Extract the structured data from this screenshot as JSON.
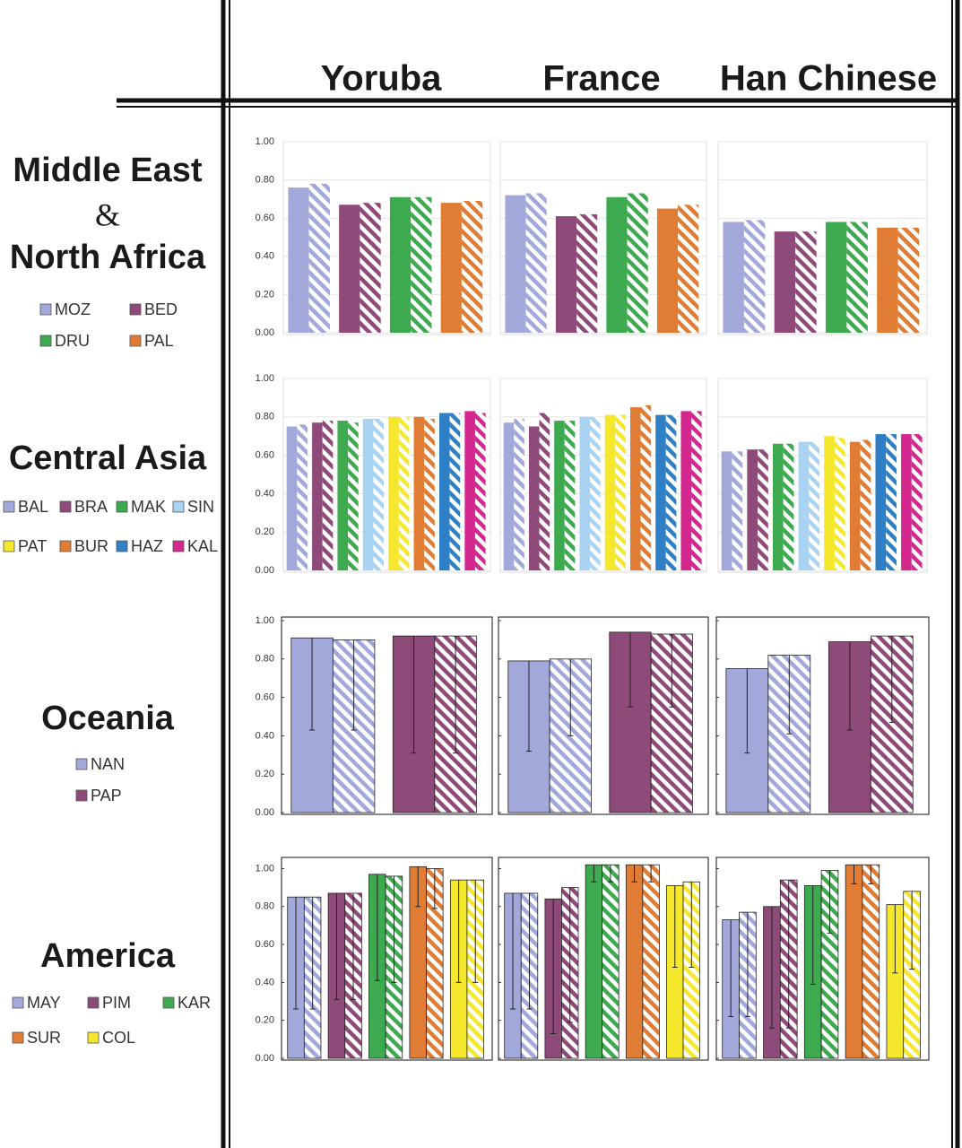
{
  "columns": [
    "Yoruba",
    "France",
    "Han Chinese"
  ],
  "chart_data": [
    {
      "type": "bar",
      "title": [
        "Middle East",
        "&",
        "North Africa"
      ],
      "ylim": [
        0,
        1
      ],
      "yticks": [
        {
          "value": 0,
          "label": "0.00"
        },
        {
          "value": 0.2,
          "label": "0.20"
        },
        {
          "value": 0.4,
          "label": "0.40"
        },
        {
          "value": 0.6,
          "label": "0.60"
        },
        {
          "value": 0.8,
          "label": "0.80"
        },
        {
          "value": 1,
          "label": "1.00"
        }
      ],
      "grid": true,
      "frame": "light",
      "bar_outline": false,
      "legend_columns": 2,
      "series": [
        {
          "name": "MOZ",
          "color": "#a3a8da",
          "values": [
            [
              0.76,
              0.78
            ],
            [
              0.72,
              0.73
            ],
            [
              0.58,
              0.59
            ]
          ]
        },
        {
          "name": "BED",
          "color": "#8e4a78",
          "values": [
            [
              0.67,
              0.68
            ],
            [
              0.61,
              0.62
            ],
            [
              0.53,
              0.53
            ]
          ]
        },
        {
          "name": "DRU",
          "color": "#3daa4f",
          "values": [
            [
              0.71,
              0.71
            ],
            [
              0.71,
              0.73
            ],
            [
              0.58,
              0.58
            ]
          ]
        },
        {
          "name": "PAL",
          "color": "#e07c33",
          "values": [
            [
              0.68,
              0.69
            ],
            [
              0.65,
              0.67
            ],
            [
              0.55,
              0.55
            ]
          ]
        }
      ]
    },
    {
      "type": "bar",
      "title": [
        "Central Asia"
      ],
      "ylim": [
        0,
        1
      ],
      "yticks": [
        {
          "value": 0,
          "label": "0.00"
        },
        {
          "value": 0.2,
          "label": "0.20"
        },
        {
          "value": 0.4,
          "label": "0.40"
        },
        {
          "value": 0.6,
          "label": "0.60"
        },
        {
          "value": 0.8,
          "label": "0.80"
        },
        {
          "value": 1,
          "label": "1.00"
        }
      ],
      "grid": true,
      "frame": "light",
      "bar_outline": false,
      "legend_columns": 4,
      "series": [
        {
          "name": "BAL",
          "color": "#a3a8da",
          "values": [
            [
              0.75,
              0.76
            ],
            [
              0.77,
              0.79
            ],
            [
              0.62,
              0.62
            ]
          ]
        },
        {
          "name": "BRA",
          "color": "#8e4a78",
          "values": [
            [
              0.77,
              0.78
            ],
            [
              0.75,
              0.82
            ],
            [
              0.63,
              0.63
            ]
          ]
        },
        {
          "name": "MAK",
          "color": "#3daa4f",
          "values": [
            [
              0.78,
              0.77
            ],
            [
              0.78,
              0.78
            ],
            [
              0.66,
              0.66
            ]
          ]
        },
        {
          "name": "SIN",
          "color": "#a9d3f3",
          "values": [
            [
              0.79,
              0.79
            ],
            [
              0.8,
              0.8
            ],
            [
              0.67,
              0.67
            ]
          ]
        },
        {
          "name": "PAT",
          "color": "#f5e82c",
          "values": [
            [
              0.8,
              0.8
            ],
            [
              0.81,
              0.81
            ],
            [
              0.7,
              0.69
            ]
          ]
        },
        {
          "name": "BUR",
          "color": "#e07c33",
          "values": [
            [
              0.8,
              0.79
            ],
            [
              0.85,
              0.86
            ],
            [
              0.67,
              0.68
            ]
          ]
        },
        {
          "name": "HAZ",
          "color": "#2f7fc6",
          "values": [
            [
              0.82,
              0.82
            ],
            [
              0.81,
              0.81
            ],
            [
              0.71,
              0.71
            ]
          ]
        },
        {
          "name": "KAL",
          "color": "#d4288e",
          "values": [
            [
              0.83,
              0.82
            ],
            [
              0.83,
              0.83
            ],
            [
              0.71,
              0.71
            ]
          ]
        }
      ]
    },
    {
      "type": "bar",
      "title": [
        "Oceania"
      ],
      "ylim": [
        0,
        1
      ],
      "yticks": [
        {
          "value": 0,
          "label": "0.00"
        },
        {
          "value": 0.2,
          "label": "0.20"
        },
        {
          "value": 0.4,
          "label": "0.40"
        },
        {
          "value": 0.6,
          "label": "0.60"
        },
        {
          "value": 0.8,
          "label": "0.80"
        },
        {
          "value": 1,
          "label": "1.00"
        }
      ],
      "grid": false,
      "frame": "dark",
      "bar_outline": true,
      "legend_columns": 1,
      "series": [
        {
          "name": "NAN",
          "color": "#a3a8da",
          "values": [
            [
              0.91,
              0.9
            ],
            [
              0.79,
              0.8
            ],
            [
              0.75,
              0.82
            ]
          ],
          "errors": [
            [
              0.48,
              0.47
            ],
            [
              0.47,
              0.4
            ],
            [
              0.44,
              0.41
            ]
          ]
        },
        {
          "name": "PAP",
          "color": "#8e4a78",
          "values": [
            [
              0.92,
              0.92
            ],
            [
              0.94,
              0.93
            ],
            [
              0.89,
              0.92
            ]
          ],
          "errors": [
            [
              0.61,
              0.61
            ],
            [
              0.39,
              0.38
            ],
            [
              0.46,
              0.45
            ]
          ]
        }
      ]
    },
    {
      "type": "bar",
      "title": [
        "America"
      ],
      "ylim": [
        0,
        1.04
      ],
      "yticks": [
        {
          "value": 0,
          "label": "0.00"
        },
        {
          "value": 0.2,
          "label": "0.20"
        },
        {
          "value": 0.4,
          "label": "0.40"
        },
        {
          "value": 0.6,
          "label": "0.60"
        },
        {
          "value": 0.8,
          "label": "0.80"
        },
        {
          "value": 1,
          "label": "1.00"
        }
      ],
      "grid": false,
      "frame": "dark",
      "bar_outline": true,
      "legend_columns": 3,
      "series": [
        {
          "name": "MAY",
          "color": "#a3a8da",
          "values": [
            [
              0.85,
              0.85
            ],
            [
              0.87,
              0.87
            ],
            [
              0.73,
              0.77
            ]
          ],
          "errors": [
            [
              0.59,
              0.59
            ],
            [
              0.61,
              0.61
            ],
            [
              0.51,
              0.55
            ]
          ]
        },
        {
          "name": "PIM",
          "color": "#8e4a78",
          "values": [
            [
              0.87,
              0.87
            ],
            [
              0.84,
              0.9
            ],
            [
              0.8,
              0.94
            ]
          ],
          "errors": [
            [
              0.56,
              0.56
            ],
            [
              0.71,
              0.71
            ],
            [
              0.64,
              0.78
            ]
          ]
        },
        {
          "name": "KAR",
          "color": "#3daa4f",
          "values": [
            [
              0.97,
              0.96
            ],
            [
              1.02,
              1.02
            ],
            [
              0.91,
              0.99
            ]
          ],
          "errors": [
            [
              0.56,
              0.56
            ],
            [
              0.09,
              0.09
            ],
            [
              0.52,
              0.33
            ]
          ]
        },
        {
          "name": "SUR",
          "color": "#e07c33",
          "values": [
            [
              1.01,
              1.0
            ],
            [
              1.02,
              1.02
            ],
            [
              1.02,
              1.02
            ]
          ],
          "errors": [
            [
              0.21,
              0.21
            ],
            [
              0.09,
              0.09
            ],
            [
              0.1,
              0.1
            ]
          ]
        },
        {
          "name": "COL",
          "color": "#f5e82c",
          "values": [
            [
              0.94,
              0.94
            ],
            [
              0.91,
              0.93
            ],
            [
              0.81,
              0.88
            ]
          ],
          "errors": [
            [
              0.54,
              0.54
            ],
            [
              0.43,
              0.45
            ],
            [
              0.36,
              0.41
            ]
          ]
        }
      ]
    }
  ]
}
